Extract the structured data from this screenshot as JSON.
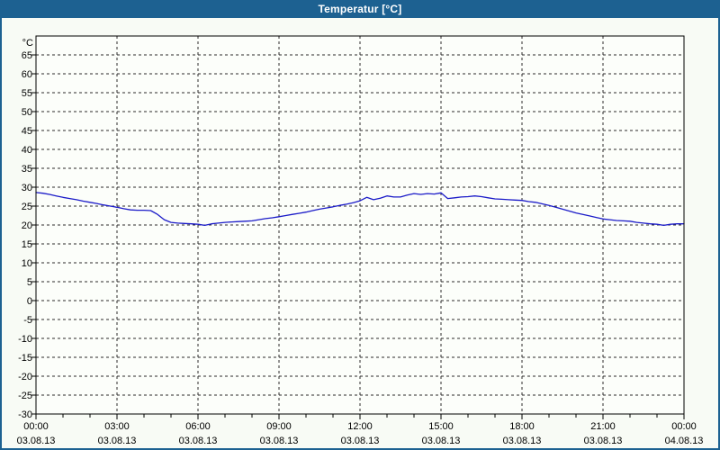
{
  "window": {
    "title": "Temperatur [°C]",
    "titlebar_color": "#1D6191",
    "border_color": "#1D6191",
    "background_color": "#F8FBF5"
  },
  "chart_data": {
    "type": "line",
    "title": "Temperatur [°C]",
    "y_unit_label": "°C",
    "ylabel": "Temperatur (°C)",
    "ylim": [
      -30,
      70
    ],
    "y_ticks": [
      65,
      60,
      55,
      50,
      45,
      40,
      35,
      30,
      25,
      20,
      15,
      10,
      5,
      0,
      -5,
      -10,
      -15,
      -20,
      -25,
      -30
    ],
    "grid": {
      "shown": true,
      "dashed": true,
      "color": "#2B2B2B"
    },
    "plot_background": "#FCFEFA",
    "axis_color": "#000000",
    "x_axis": {
      "range_hours": [
        0,
        24
      ],
      "minor_tick_hours": 1,
      "major_tick_hours": 3,
      "major_labels": [
        {
          "hour": 0,
          "time": "00:00",
          "date": "03.08.13"
        },
        {
          "hour": 3,
          "time": "03:00",
          "date": "03.08.13"
        },
        {
          "hour": 6,
          "time": "06:00",
          "date": "03.08.13"
        },
        {
          "hour": 9,
          "time": "09:00",
          "date": "03.08.13"
        },
        {
          "hour": 12,
          "time": "12:00",
          "date": "03.08.13"
        },
        {
          "hour": 15,
          "time": "15:00",
          "date": "03.08.13"
        },
        {
          "hour": 18,
          "time": "18:00",
          "date": "03.08.13"
        },
        {
          "hour": 21,
          "time": "21:00",
          "date": "03.08.13"
        },
        {
          "hour": 24,
          "time": "00:00",
          "date": "04.08.13"
        }
      ]
    },
    "series": [
      {
        "name": "Temperatur",
        "color": "#1B1BC8",
        "x_hours": [
          0,
          0.25,
          0.5,
          0.75,
          1,
          1.25,
          1.5,
          1.75,
          2,
          2.25,
          2.5,
          2.75,
          3,
          3.25,
          3.5,
          3.75,
          4,
          4.25,
          4.5,
          4.75,
          5,
          5.25,
          5.5,
          5.75,
          6,
          6.25,
          6.5,
          6.75,
          7,
          7.25,
          7.5,
          7.75,
          8,
          8.25,
          8.5,
          8.75,
          9,
          9.25,
          9.5,
          9.75,
          10,
          10.25,
          10.5,
          10.75,
          11,
          11.25,
          11.5,
          11.75,
          12,
          12.25,
          12.5,
          12.75,
          13,
          13.25,
          13.5,
          13.75,
          14,
          14.25,
          14.5,
          14.75,
          15,
          15.25,
          15.5,
          15.75,
          16,
          16.25,
          16.5,
          16.75,
          17,
          17.25,
          17.5,
          17.75,
          18,
          18.25,
          18.5,
          18.75,
          19,
          19.25,
          19.5,
          19.75,
          20,
          20.25,
          20.5,
          20.75,
          21,
          21.25,
          21.5,
          21.75,
          22,
          22.25,
          22.5,
          22.75,
          23,
          23.25,
          23.5,
          23.75,
          24
        ],
        "values": [
          28.6,
          28.4,
          28.1,
          27.7,
          27.3,
          27.0,
          26.7,
          26.3,
          26.0,
          25.7,
          25.3,
          25.0,
          24.7,
          24.3,
          24.0,
          23.9,
          23.9,
          23.8,
          22.8,
          21.4,
          20.7,
          20.5,
          20.4,
          20.3,
          20.2,
          19.9,
          20.3,
          20.5,
          20.7,
          20.8,
          20.9,
          21.0,
          21.1,
          21.4,
          21.7,
          21.9,
          22.2,
          22.5,
          22.8,
          23.1,
          23.4,
          23.8,
          24.2,
          24.5,
          24.8,
          25.2,
          25.5,
          25.9,
          26.4,
          27.3,
          26.7,
          27.1,
          27.7,
          27.4,
          27.4,
          27.9,
          28.3,
          28.1,
          28.3,
          28.2,
          28.5,
          27.0,
          27.2,
          27.4,
          27.5,
          27.7,
          27.5,
          27.2,
          26.9,
          26.8,
          26.7,
          26.6,
          26.5,
          26.2,
          26.0,
          25.6,
          25.2,
          24.7,
          24.2,
          23.7,
          23.2,
          22.8,
          22.4,
          22.0,
          21.6,
          21.4,
          21.2,
          21.1,
          21.0,
          20.7,
          20.5,
          20.3,
          20.2,
          19.9,
          20.2,
          20.3,
          20.3
        ]
      }
    ]
  }
}
